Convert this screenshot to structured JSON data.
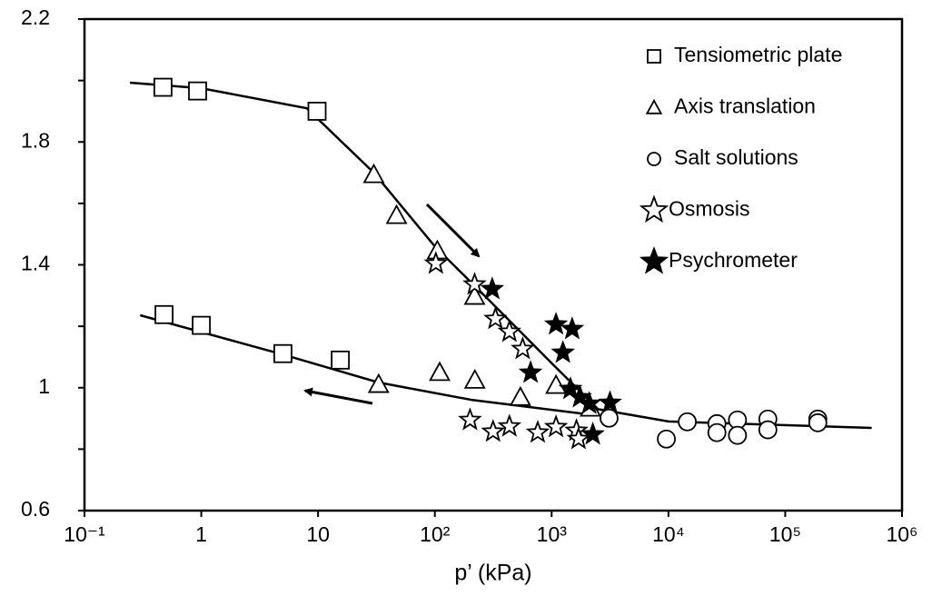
{
  "chart_data": {
    "type": "scatter",
    "xlabel": "p’ (kPa)",
    "xscale": "log",
    "xlim": [
      0.1,
      1000000
    ],
    "ylim": [
      0.6,
      2.2
    ],
    "xticks": [
      {
        "value": 0.1,
        "label": "10⁻¹"
      },
      1,
      10,
      {
        "value": 100,
        "label": "10²"
      },
      {
        "value": 1000,
        "label": "10³"
      },
      {
        "value": 10000,
        "label": "10⁴"
      },
      {
        "value": 100000,
        "label": "10⁵"
      },
      {
        "value": 1000000,
        "label": "10⁶"
      }
    ],
    "yticks": [
      0.6,
      1,
      1.4,
      1.8,
      2.2
    ],
    "yticks_minor": [
      0.8,
      1.2,
      1.6,
      2.0
    ],
    "legend": "upper right",
    "series": [
      {
        "name": "Tensiometric plate",
        "marker": "square",
        "color": "#000000",
        "x": [
          0.47,
          0.93,
          9.8,
          0.48,
          1.0,
          5.0,
          15.5
        ],
        "values": [
          1.978,
          1.966,
          1.9,
          1.238,
          1.203,
          1.111,
          1.09
        ]
      },
      {
        "name": "Axis translation",
        "marker": "triangle",
        "color": "#000000",
        "x": [
          30,
          47,
          105,
          219,
          33,
          110,
          220,
          540,
          1090,
          2150
        ],
        "values": [
          1.694,
          1.561,
          1.446,
          1.298,
          1.011,
          1.05,
          1.025,
          0.969,
          1.008,
          0.934
        ]
      },
      {
        "name": "Salt solutions",
        "marker": "circle",
        "color": "#000000",
        "x": [
          3100,
          9600,
          14500,
          26000,
          26000,
          39000,
          39000,
          71000,
          71000,
          190000,
          190000
        ],
        "values": [
          0.901,
          0.833,
          0.889,
          0.883,
          0.854,
          0.895,
          0.845,
          0.898,
          0.863,
          0.898,
          0.886
        ]
      },
      {
        "name": "Osmosis",
        "marker": "star-open",
        "color": "#000000",
        "x": [
          102,
          219,
          330,
          435,
          565,
          200,
          315,
          435,
          760,
          1090,
          1630,
          1700
        ],
        "values": [
          1.404,
          1.336,
          1.224,
          1.182,
          1.126,
          0.895,
          0.857,
          0.874,
          0.854,
          0.872,
          0.86,
          0.833
        ]
      },
      {
        "name": "Psychrometer",
        "marker": "star-filled",
        "color": "#000000",
        "x": [
          310,
          1090,
          1500,
          1250,
          660,
          1450,
          1750,
          2100,
          3160,
          2250
        ],
        "values": [
          1.321,
          1.206,
          1.191,
          1.114,
          1.049,
          0.996,
          0.969,
          0.948,
          0.951,
          0.848
        ]
      }
    ],
    "fit_lines": [
      {
        "x": [
          0.245,
          1,
          8,
          30,
          100,
          300,
          1000,
          2500,
          10000,
          550000
        ],
        "y": [
          1.993,
          1.975,
          1.91,
          1.7,
          1.46,
          1.28,
          1.08,
          0.93,
          0.89,
          0.869
        ]
      },
      {
        "x": [
          0.3,
          5,
          33,
          210,
          2100
        ],
        "y": [
          1.236,
          1.108,
          1.017,
          0.96,
          0.913
        ]
      }
    ]
  }
}
